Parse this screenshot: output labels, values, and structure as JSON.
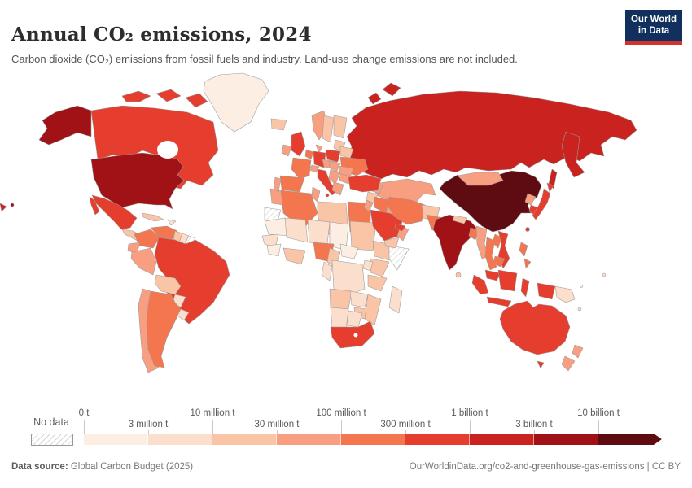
{
  "header": {
    "title": "Annual CO₂ emissions, 2024",
    "subtitle": "Carbon dioxide (CO₂) emissions from fossil fuels and industry. Land-use change emissions are not included.",
    "logo": {
      "line1": "Our World",
      "line2": "in Data",
      "bg": "#12305e",
      "accent": "#d0342c"
    }
  },
  "footer": {
    "source_label": "Data source:",
    "source_value": " Global Carbon Budget (2025)",
    "credit": "OurWorldinData.org/co2-and-greenhouse-gas-emissions | CC BY"
  },
  "chart_data": {
    "type": "choropleth",
    "title": "Annual CO₂ emissions, 2024",
    "year": "2024",
    "unit": "tonnes (t)",
    "legend": {
      "no_data_label": "No data",
      "tick_labels": [
        "0 t",
        "3 million t",
        "10 million t",
        "30 million t",
        "100 million t",
        "300 million t",
        "1 billion t",
        "3 billion t",
        "10 billion t"
      ],
      "bin_colors": {
        "b1": "#fdeee3",
        "b2": "#fbdecb",
        "b3": "#f9c5a6",
        "b4": "#f79f80",
        "b5": "#f4764f",
        "b6": "#e63e2e",
        "b7": "#c9221f",
        "b8": "#a11217",
        "b9": "#5f0b12"
      },
      "no_data_hatch_color": "#cfcfcf"
    },
    "regions": [
      {
        "id": "russia",
        "label": "Russia",
        "bin": "b7"
      },
      {
        "id": "russia-kamchatka",
        "label": "Russia (Kamchatka)",
        "bin": "b7"
      },
      {
        "id": "sakhalin",
        "label": "Russia (Sakhalin)",
        "bin": "b7"
      },
      {
        "id": "novaya-zemlya",
        "label": "Russia (Novaya Zemlya)",
        "bin": "b7"
      },
      {
        "id": "chukotka-west",
        "label": "Russia (east tip)",
        "bin": "b7"
      },
      {
        "id": "canada",
        "label": "Canada",
        "bin": "b6"
      },
      {
        "id": "canada-arctic",
        "label": "Canada (Arctic islands)",
        "bin": "b6"
      },
      {
        "id": "greenland",
        "label": "Greenland",
        "bin": "b1"
      },
      {
        "id": "alaska",
        "label": "United States (Alaska)",
        "bin": "b8"
      },
      {
        "id": "usa",
        "label": "United States",
        "bin": "b8"
      },
      {
        "id": "hawaii",
        "label": "United States (Hawaii)",
        "bin": "b8"
      },
      {
        "id": "mexico",
        "label": "Mexico",
        "bin": "b6"
      },
      {
        "id": "baja",
        "label": "Mexico (Baja)",
        "bin": "b6"
      },
      {
        "id": "central-america",
        "label": "Central America",
        "bin": "b3"
      },
      {
        "id": "cuba",
        "label": "Cuba",
        "bin": "b3"
      },
      {
        "id": "hispaniola",
        "label": "Hispaniola",
        "bin": "b2"
      },
      {
        "id": "colombia",
        "label": "Colombia",
        "bin": "b5"
      },
      {
        "id": "venezuela",
        "label": "Venezuela",
        "bin": "b5"
      },
      {
        "id": "guyana",
        "label": "Guyana",
        "bin": "b3"
      },
      {
        "id": "suriname",
        "label": "Suriname",
        "bin": "b2"
      },
      {
        "id": "french-guiana",
        "label": "French Guiana",
        "bin": "nodata"
      },
      {
        "id": "ecuador",
        "label": "Ecuador",
        "bin": "b4"
      },
      {
        "id": "peru",
        "label": "Peru",
        "bin": "b4"
      },
      {
        "id": "brazil",
        "label": "Brazil",
        "bin": "b6"
      },
      {
        "id": "bolivia",
        "label": "Bolivia",
        "bin": "b3"
      },
      {
        "id": "paraguay",
        "label": "Paraguay",
        "bin": "b2"
      },
      {
        "id": "chile",
        "label": "Chile",
        "bin": "b4"
      },
      {
        "id": "argentina",
        "label": "Argentina",
        "bin": "b5"
      },
      {
        "id": "uruguay",
        "label": "Uruguay",
        "bin": "b2"
      },
      {
        "id": "morocco",
        "label": "Morocco",
        "bin": "b4"
      },
      {
        "id": "algeria",
        "label": "Algeria",
        "bin": "b5"
      },
      {
        "id": "tunisia",
        "label": "Tunisia",
        "bin": "b4"
      },
      {
        "id": "libya",
        "label": "Libya",
        "bin": "b3"
      },
      {
        "id": "egypt",
        "label": "Egypt",
        "bin": "b5"
      },
      {
        "id": "western-sahara",
        "label": "Western Sahara",
        "bin": "nodata"
      },
      {
        "id": "mauritania",
        "label": "Mauritania",
        "bin": "b1"
      },
      {
        "id": "mali",
        "label": "Mali",
        "bin": "b2"
      },
      {
        "id": "niger",
        "label": "Niger",
        "bin": "b2"
      },
      {
        "id": "chad",
        "label": "Chad",
        "bin": "b1"
      },
      {
        "id": "sudan",
        "label": "Sudan",
        "bin": "b3"
      },
      {
        "id": "senegal",
        "label": "Senegal",
        "bin": "b2"
      },
      {
        "id": "guinea-region",
        "label": "Guinea region",
        "bin": "b1"
      },
      {
        "id": "ivory-ghana",
        "label": "Côte d'Ivoire / Ghana",
        "bin": "b3"
      },
      {
        "id": "nigeria",
        "label": "Nigeria",
        "bin": "b5"
      },
      {
        "id": "cameroon",
        "label": "Cameroon",
        "bin": "b3"
      },
      {
        "id": "car",
        "label": "Central African Republic",
        "bin": "b1"
      },
      {
        "id": "ethiopia",
        "label": "Ethiopia",
        "bin": "b3"
      },
      {
        "id": "somalia",
        "label": "Somalia",
        "bin": "nodata"
      },
      {
        "id": "kenya",
        "label": "Kenya",
        "bin": "b3"
      },
      {
        "id": "tanzania",
        "label": "Tanzania",
        "bin": "b3"
      },
      {
        "id": "uganda",
        "label": "Uganda",
        "bin": "b2"
      },
      {
        "id": "drc",
        "label": "Democratic Republic of Congo",
        "bin": "b2"
      },
      {
        "id": "congo-gabon",
        "label": "Congo / Gabon",
        "bin": "b2"
      },
      {
        "id": "angola",
        "label": "Angola",
        "bin": "b3"
      },
      {
        "id": "zambia",
        "label": "Zambia",
        "bin": "b2"
      },
      {
        "id": "zimbabwe",
        "label": "Zimbabwe",
        "bin": "b3"
      },
      {
        "id": "mozambique",
        "label": "Mozambique",
        "bin": "b3"
      },
      {
        "id": "namibia",
        "label": "Namibia",
        "bin": "b2"
      },
      {
        "id": "botswana",
        "label": "Botswana",
        "bin": "b2"
      },
      {
        "id": "south-africa",
        "label": "South Africa",
        "bin": "b6"
      },
      {
        "id": "madagascar",
        "label": "Madagascar",
        "bin": "b2"
      },
      {
        "id": "iceland",
        "label": "Iceland",
        "bin": "b3"
      },
      {
        "id": "uk",
        "label": "United Kingdom",
        "bin": "b6"
      },
      {
        "id": "ireland",
        "label": "Ireland",
        "bin": "b4"
      },
      {
        "id": "norway",
        "label": "Norway",
        "bin": "b4"
      },
      {
        "id": "sweden",
        "label": "Sweden",
        "bin": "b3"
      },
      {
        "id": "finland",
        "label": "Finland",
        "bin": "b3"
      },
      {
        "id": "denmark",
        "label": "Denmark",
        "bin": "b4"
      },
      {
        "id": "germany",
        "label": "Germany",
        "bin": "b6"
      },
      {
        "id": "benelux",
        "label": "Netherlands / Belgium",
        "bin": "b5"
      },
      {
        "id": "france",
        "label": "France",
        "bin": "b5"
      },
      {
        "id": "spain",
        "label": "Spain",
        "bin": "b5"
      },
      {
        "id": "portugal",
        "label": "Portugal",
        "bin": "b4"
      },
      {
        "id": "italy",
        "label": "Italy",
        "bin": "b6"
      },
      {
        "id": "sicily",
        "label": "Italy (Sicily)",
        "bin": "b6"
      },
      {
        "id": "switzerland",
        "label": "Switzerland",
        "bin": "b4"
      },
      {
        "id": "austria-czech",
        "label": "Austria / Czechia",
        "bin": "b4"
      },
      {
        "id": "poland",
        "label": "Poland",
        "bin": "b6"
      },
      {
        "id": "baltics",
        "label": "Baltic states",
        "bin": "b3"
      },
      {
        "id": "belarus",
        "label": "Belarus",
        "bin": "b3"
      },
      {
        "id": "ukraine",
        "label": "Ukraine",
        "bin": "b5"
      },
      {
        "id": "romania",
        "label": "Romania",
        "bin": "b4"
      },
      {
        "id": "hungary-slovakia",
        "label": "Hungary / Slovakia",
        "bin": "b4"
      },
      {
        "id": "balkans",
        "label": "Balkans",
        "bin": "b4"
      },
      {
        "id": "greece",
        "label": "Greece",
        "bin": "b4"
      },
      {
        "id": "bulgaria",
        "label": "Bulgaria",
        "bin": "b4"
      },
      {
        "id": "kazakhstan",
        "label": "Kazakhstan",
        "bin": "b4"
      },
      {
        "id": "uzbekistan",
        "label": "Uzbekistan",
        "bin": "b4"
      },
      {
        "id": "turkmenistan",
        "label": "Turkmenistan",
        "bin": "b4"
      },
      {
        "id": "kyrgyz-tajik",
        "label": "Kyrgyzstan / Tajikistan",
        "bin": "b3"
      },
      {
        "id": "caucasus",
        "label": "Caucasus",
        "bin": "b4"
      },
      {
        "id": "turkey",
        "label": "Turkey",
        "bin": "b6"
      },
      {
        "id": "syria",
        "label": "Syria",
        "bin": "b3"
      },
      {
        "id": "iraq",
        "label": "Iraq",
        "bin": "b5"
      },
      {
        "id": "saudi-arabia",
        "label": "Saudi Arabia",
        "bin": "b6"
      },
      {
        "id": "yemen",
        "label": "Yemen",
        "bin": "b3"
      },
      {
        "id": "oman",
        "label": "Oman",
        "bin": "b4"
      },
      {
        "id": "uae-qatar",
        "label": "UAE / Qatar",
        "bin": "b6"
      },
      {
        "id": "jordan-israel",
        "label": "Jordan / Israel",
        "bin": "b4"
      },
      {
        "id": "iran",
        "label": "Iran",
        "bin": "b5"
      },
      {
        "id": "afghanistan",
        "label": "Afghanistan",
        "bin": "b3"
      },
      {
        "id": "pakistan",
        "label": "Pakistan",
        "bin": "b5"
      },
      {
        "id": "india",
        "label": "India",
        "bin": "b8"
      },
      {
        "id": "nepal",
        "label": "Nepal",
        "bin": "b3"
      },
      {
        "id": "bangladesh",
        "label": "Bangladesh",
        "bin": "b5"
      },
      {
        "id": "sri-lanka",
        "label": "Sri Lanka",
        "bin": "b3"
      },
      {
        "id": "myanmar",
        "label": "Myanmar",
        "bin": "b4"
      },
      {
        "id": "thailand",
        "label": "Thailand",
        "bin": "b5"
      },
      {
        "id": "laos",
        "label": "Laos",
        "bin": "b5"
      },
      {
        "id": "vietnam",
        "label": "Vietnam",
        "bin": "b6"
      },
      {
        "id": "cambodia",
        "label": "Cambodia",
        "bin": "b5"
      },
      {
        "id": "malaysia",
        "label": "Malaysia",
        "bin": "b6"
      },
      {
        "id": "china",
        "label": "China",
        "bin": "b9"
      },
      {
        "id": "mongolia",
        "label": "Mongolia",
        "bin": "b4"
      },
      {
        "id": "taiwan",
        "label": "Taiwan",
        "bin": "b6"
      },
      {
        "id": "north-korea",
        "label": "North Korea",
        "bin": "b4"
      },
      {
        "id": "south-korea",
        "label": "South Korea",
        "bin": "b6"
      },
      {
        "id": "japan",
        "label": "Japan",
        "bin": "b6"
      },
      {
        "id": "japan-hokkaido",
        "label": "Japan (Hokkaido)",
        "bin": "b6"
      },
      {
        "id": "philippines",
        "label": "Philippines",
        "bin": "b5"
      },
      {
        "id": "indonesia",
        "label": "Indonesia",
        "bin": "b6"
      },
      {
        "id": "png",
        "label": "Papua New Guinea",
        "bin": "b2"
      },
      {
        "id": "australia",
        "label": "Australia",
        "bin": "b6"
      },
      {
        "id": "tasmania",
        "label": "Australia (Tasmania)",
        "bin": "b6"
      },
      {
        "id": "new-zealand",
        "label": "New Zealand",
        "bin": "b4"
      },
      {
        "id": "fiji",
        "label": "Fiji",
        "bin": "b2"
      },
      {
        "id": "new-caledonia",
        "label": "New Caledonia",
        "bin": "b2"
      },
      {
        "id": "solomon",
        "label": "Solomon Islands",
        "bin": "b1"
      }
    ]
  }
}
